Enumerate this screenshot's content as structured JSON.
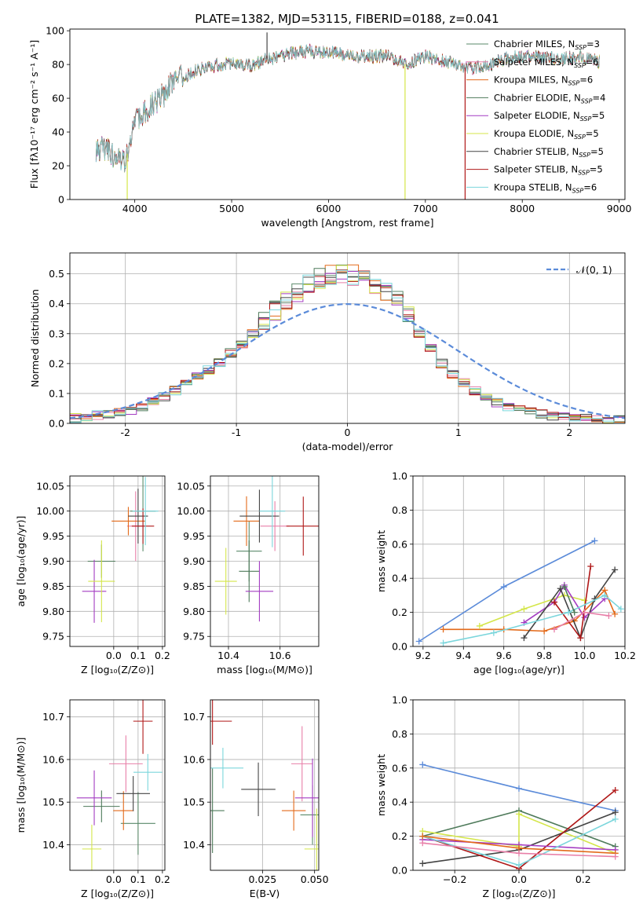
{
  "figure": {
    "title": "PLATE=1382, MJD=53115, FIBERID=0188, z=0.041"
  },
  "colors": [
    "#5a8a6a",
    "#e87fa8",
    "#e36a1a",
    "#4e7a5a",
    "#a43cc2",
    "#d4e64a",
    "#444444",
    "#b01818",
    "#7bd6dc"
  ],
  "chart_data": [
    {
      "id": "spectrum",
      "type": "line",
      "title": "PLATE=1382, MJD=53115, FIBERID=0188, z=0.041",
      "xlabel": "wavelength [Angstrom, rest frame]",
      "ylabel": "Flux [fλ10⁻¹⁷ erg cm⁻² s⁻¹ A⁻¹]",
      "xlim": [
        3330,
        9060
      ],
      "ylim": [
        0,
        101
      ],
      "xticks": [
        4000,
        5000,
        6000,
        7000,
        8000,
        9000
      ],
      "yticks": [
        0,
        20,
        40,
        60,
        80,
        100
      ],
      "grid": false,
      "legend_position": "top-right",
      "legend": [
        {
          "label": "Chabrier MILES, N",
          "sub": "SSP",
          "tail": "=3"
        },
        {
          "label": "Salpeter MILES, N",
          "sub": "SSP",
          "tail": "=6"
        },
        {
          "label": "Kroupa MILES, N",
          "sub": "SSP",
          "tail": "=6"
        },
        {
          "label": "Chabrier ELODIE, N",
          "sub": "SSP",
          "tail": "=4"
        },
        {
          "label": "Salpeter ELODIE, N",
          "sub": "SSP",
          "tail": "=5"
        },
        {
          "label": "Kroupa ELODIE, N",
          "sub": "SSP",
          "tail": "=5"
        },
        {
          "label": "Chabrier STELIB, N",
          "sub": "SSP",
          "tail": "=5"
        },
        {
          "label": "Salpeter STELIB, N",
          "sub": "SSP",
          "tail": "=5"
        },
        {
          "label": "Kroupa STELIB, N",
          "sub": "SSP",
          "tail": "=6"
        }
      ],
      "continuum": {
        "x": [
          3600,
          3700,
          3800,
          3900,
          4000,
          4100,
          4200,
          4300,
          4400,
          4500,
          4700,
          5000,
          5200,
          5400,
          5600,
          5800,
          6000,
          6300,
          6600,
          6800,
          7000,
          7200,
          7400,
          7600,
          7800,
          8000,
          8300,
          8600,
          8800
        ],
        "y": [
          30,
          30,
          25,
          22,
          45,
          52,
          57,
          62,
          70,
          73,
          78,
          81,
          79,
          84,
          86,
          88,
          87,
          85,
          85,
          80,
          85,
          82,
          78,
          78,
          83,
          85,
          84,
          84,
          82
        ]
      },
      "spikes": [
        {
          "x": 3922,
          "y": 0,
          "series": 5
        },
        {
          "x": 6790,
          "y": 0,
          "series": 5
        },
        {
          "x": 7410,
          "y": 0,
          "series": 7
        },
        {
          "x": 5365,
          "y": 99,
          "series": 6
        }
      ]
    },
    {
      "id": "residuals",
      "type": "line",
      "xlabel": "(data-model)/error",
      "ylabel": "Normed distribution",
      "xlim": [
        -2.5,
        2.5
      ],
      "ylim": [
        0,
        0.57
      ],
      "xticks": [
        -2,
        -1,
        0,
        1,
        2
      ],
      "yticks": [
        0,
        0.1,
        0.2,
        0.3,
        0.4,
        0.5
      ],
      "grid": true,
      "legend_position": "top-right",
      "reference_label": "𝒩(0, 1)",
      "reference_color": "#5b8bd9",
      "bin_width": 0.1,
      "histogram_shape": {
        "bin_centers": [
          -2.45,
          -2.35,
          -2.25,
          -2.15,
          -2.05,
          -1.95,
          -1.85,
          -1.75,
          -1.65,
          -1.55,
          -1.45,
          -1.35,
          -1.25,
          -1.15,
          -1.05,
          -0.95,
          -0.85,
          -0.75,
          -0.65,
          -0.55,
          -0.45,
          -0.35,
          -0.25,
          -0.15,
          -0.05,
          0.05,
          0.15,
          0.25,
          0.35,
          0.45,
          0.55,
          0.65,
          0.75,
          0.85,
          0.95,
          1.05,
          1.15,
          1.25,
          1.35,
          1.45,
          1.55,
          1.65,
          1.75,
          1.85,
          1.95,
          2.05,
          2.15,
          2.25,
          2.35,
          2.45
        ],
        "density": [
          0.018,
          0.022,
          0.028,
          0.033,
          0.038,
          0.045,
          0.057,
          0.072,
          0.09,
          0.11,
          0.13,
          0.155,
          0.178,
          0.205,
          0.235,
          0.265,
          0.3,
          0.34,
          0.375,
          0.41,
          0.44,
          0.465,
          0.485,
          0.495,
          0.5,
          0.495,
          0.485,
          0.465,
          0.44,
          0.41,
          0.36,
          0.3,
          0.25,
          0.2,
          0.165,
          0.135,
          0.108,
          0.088,
          0.07,
          0.057,
          0.046,
          0.038,
          0.031,
          0.026,
          0.022,
          0.019,
          0.016,
          0.014,
          0.012,
          0.011
        ]
      }
    },
    {
      "id": "age-Z",
      "type": "scatter",
      "xlabel": "Z [log₁₀(Z/Z⊙)]",
      "ylabel": "age  [log₁₀(age/yr)]",
      "xlim": [
        -0.18,
        0.21
      ],
      "ylim": [
        9.73,
        10.07
      ],
      "xticks": [
        0.0,
        0.1,
        0.2
      ],
      "xticklabels": [
        "0.0",
        "0.1",
        "0.2"
      ],
      "yticks": [
        9.75,
        9.8,
        9.85,
        9.9,
        9.95,
        10.0,
        10.05
      ],
      "grid": true,
      "points": [
        {
          "series": 0,
          "x": 0.12,
          "y": 10.0
        },
        {
          "series": 1,
          "x": 0.09,
          "y": 9.97
        },
        {
          "series": 2,
          "x": 0.06,
          "y": 9.98
        },
        {
          "series": 3,
          "x": -0.05,
          "y": 9.9
        },
        {
          "series": 4,
          "x": -0.08,
          "y": 9.84
        },
        {
          "series": 5,
          "x": -0.05,
          "y": 9.86
        },
        {
          "series": 6,
          "x": 0.1,
          "y": 9.99
        },
        {
          "series": 7,
          "x": 0.12,
          "y": 9.97
        },
        {
          "series": 8,
          "x": 0.13,
          "y": 10.0
        }
      ]
    },
    {
      "id": "age-mass",
      "type": "scatter",
      "xlabel": "mass [log₁₀(M/M⊙)]",
      "xlim": [
        10.33,
        10.75
      ],
      "ylim": [
        9.73,
        10.07
      ],
      "xticks": [
        10.4,
        10.6
      ],
      "xticklabels": [
        "10.4",
        "10.6"
      ],
      "yticks": [
        9.75,
        9.8,
        9.85,
        9.9,
        9.95,
        10.0,
        10.05
      ],
      "grid": true,
      "points": [
        {
          "series": 0,
          "x": 10.48,
          "y": 9.92
        },
        {
          "series": 1,
          "x": 10.58,
          "y": 9.97
        },
        {
          "series": 2,
          "x": 10.47,
          "y": 9.98
        },
        {
          "series": 3,
          "x": 10.48,
          "y": 9.88
        },
        {
          "series": 4,
          "x": 10.52,
          "y": 9.84
        },
        {
          "series": 5,
          "x": 10.39,
          "y": 9.86
        },
        {
          "series": 6,
          "x": 10.52,
          "y": 9.99
        },
        {
          "series": 7,
          "x": 10.69,
          "y": 9.97
        },
        {
          "series": 8,
          "x": 10.57,
          "y": 10.0
        }
      ]
    },
    {
      "id": "weight-age",
      "type": "line",
      "xlabel": "age  [log₁₀(age/yr)]",
      "ylabel": "mass weight",
      "xlim": [
        9.15,
        10.2
      ],
      "ylim": [
        0,
        1
      ],
      "xticks": [
        9.2,
        9.4,
        9.6,
        9.8,
        10.0,
        10.2
      ],
      "xticklabels": [
        "9.2",
        "9.4",
        "9.6",
        "9.8",
        "10.0",
        "10.2"
      ],
      "yticks": [
        0,
        0.2,
        0.4,
        0.6,
        0.8,
        1.0
      ],
      "grid": true,
      "series": [
        {
          "color": "#5b8bd9",
          "x": [
            9.18,
            9.6,
            10.05
          ],
          "y": [
            0.03,
            0.35,
            0.62
          ]
        },
        {
          "color": "#e36a1a",
          "x": [
            9.3,
            9.6,
            9.8,
            9.95,
            10.1,
            10.15
          ],
          "y": [
            0.1,
            0.1,
            0.09,
            0.15,
            0.33,
            0.19
          ]
        },
        {
          "color": "#d4e64a",
          "x": [
            9.48,
            9.7,
            9.9,
            10.0
          ],
          "y": [
            0.12,
            0.22,
            0.3,
            0.27
          ]
        },
        {
          "color": "#a43cc2",
          "x": [
            9.7,
            9.85,
            9.9,
            10.0,
            10.1
          ],
          "y": [
            0.14,
            0.26,
            0.36,
            0.17,
            0.28
          ]
        },
        {
          "color": "#444444",
          "x": [
            9.7,
            9.88,
            9.98,
            10.05,
            10.15
          ],
          "y": [
            0.05,
            0.34,
            0.05,
            0.28,
            0.45
          ]
        },
        {
          "color": "#b01818",
          "x": [
            9.85,
            9.98,
            10.03
          ],
          "y": [
            0.26,
            0.05,
            0.47
          ]
        },
        {
          "color": "#7bd6dc",
          "x": [
            9.3,
            9.55,
            9.92,
            10.1,
            10.18
          ],
          "y": [
            0.02,
            0.08,
            0.2,
            0.3,
            0.22
          ]
        },
        {
          "color": "#e87fa8",
          "x": [
            9.85,
            10.0,
            10.12
          ],
          "y": [
            0.1,
            0.2,
            0.18
          ]
        },
        {
          "color": "#4e7a5a",
          "x": [
            9.9,
            9.95
          ],
          "y": [
            0.35,
            0.2
          ]
        }
      ]
    },
    {
      "id": "mass-Z",
      "type": "scatter",
      "xlabel": "Z [log₁₀(Z/Z⊙)]",
      "ylabel": "mass [log₁₀(M/M⊙)]",
      "xlim": [
        -0.18,
        0.21
      ],
      "ylim": [
        10.34,
        10.74
      ],
      "xticks": [
        0.0,
        0.1,
        0.2
      ],
      "xticklabels": [
        "0.0",
        "0.1",
        "0.2"
      ],
      "yticks": [
        10.4,
        10.5,
        10.6,
        10.7
      ],
      "grid": true,
      "points": [
        {
          "series": 0,
          "x": 0.1,
          "y": 10.45
        },
        {
          "series": 1,
          "x": 0.05,
          "y": 10.59
        },
        {
          "series": 2,
          "x": 0.04,
          "y": 10.48
        },
        {
          "series": 3,
          "x": -0.05,
          "y": 10.49
        },
        {
          "series": 4,
          "x": -0.08,
          "y": 10.51
        },
        {
          "series": 5,
          "x": -0.09,
          "y": 10.39
        },
        {
          "series": 6,
          "x": 0.08,
          "y": 10.52
        },
        {
          "series": 7,
          "x": 0.12,
          "y": 10.69
        },
        {
          "series": 8,
          "x": 0.14,
          "y": 10.57
        }
      ]
    },
    {
      "id": "mass-ebv",
      "type": "scatter",
      "xlabel": "E(B-V)",
      "xlim": [
        0.0,
        0.052
      ],
      "ylim": [
        10.34,
        10.74
      ],
      "xticks": [
        0.025,
        0.05
      ],
      "xticklabels": [
        "0.025",
        "0.050"
      ],
      "yticks": [
        10.4,
        10.5,
        10.6,
        10.7
      ],
      "grid": true,
      "points": [
        {
          "series": 0,
          "x": 0.049,
          "y": 10.47
        },
        {
          "series": 1,
          "x": 0.044,
          "y": 10.59
        },
        {
          "series": 2,
          "x": 0.04,
          "y": 10.48
        },
        {
          "series": 3,
          "x": 0.001,
          "y": 10.48
        },
        {
          "series": 4,
          "x": 0.049,
          "y": 10.51
        },
        {
          "series": 5,
          "x": 0.051,
          "y": 10.39
        },
        {
          "series": 6,
          "x": 0.023,
          "y": 10.53
        },
        {
          "series": 7,
          "x": 0.001,
          "y": 10.69
        },
        {
          "series": 8,
          "x": 0.006,
          "y": 10.58
        }
      ]
    },
    {
      "id": "weight-Z",
      "type": "line",
      "xlabel": "Z [log₁₀(Z/Z⊙)]",
      "ylabel": "mass weight",
      "xlim": [
        -0.33,
        0.33
      ],
      "ylim": [
        0,
        1
      ],
      "xticks": [
        -0.2,
        0.0,
        0.2
      ],
      "xticklabels": [
        "−0.2",
        "0.0",
        "0.2"
      ],
      "yticks": [
        0,
        0.2,
        0.4,
        0.6,
        0.8,
        1.0
      ],
      "grid": true,
      "series": [
        {
          "color": "#5b8bd9",
          "x": [
            -0.3,
            0.0,
            0.3
          ],
          "y": [
            0.62,
            0.48,
            0.35
          ]
        },
        {
          "color": "#4e7a5a",
          "x": [
            -0.3,
            0.0,
            0.3
          ],
          "y": [
            0.2,
            0.35,
            0.14
          ]
        },
        {
          "color": "#d4e64a",
          "x": [
            -0.3,
            0.0,
            0.0,
            0.3
          ],
          "y": [
            0.23,
            0.14,
            0.33,
            0.1
          ]
        },
        {
          "color": "#444444",
          "x": [
            -0.3,
            0.0,
            0.3
          ],
          "y": [
            0.04,
            0.12,
            0.34
          ]
        },
        {
          "color": "#b01818",
          "x": [
            -0.3,
            0.0,
            0.3
          ],
          "y": [
            0.2,
            0.01,
            0.47
          ]
        },
        {
          "color": "#a43cc2",
          "x": [
            -0.3,
            0.0,
            0.3
          ],
          "y": [
            0.18,
            0.15,
            0.12
          ]
        },
        {
          "color": "#7bd6dc",
          "x": [
            -0.3,
            0.0,
            0.3
          ],
          "y": [
            0.2,
            0.03,
            0.3
          ]
        },
        {
          "color": "#e36a1a",
          "x": [
            -0.3,
            0.0,
            0.3
          ],
          "y": [
            0.2,
            0.13,
            0.1
          ]
        },
        {
          "color": "#e87fa8",
          "x": [
            -0.3,
            0.0,
            0.3
          ],
          "y": [
            0.16,
            0.1,
            0.08
          ]
        }
      ]
    }
  ]
}
